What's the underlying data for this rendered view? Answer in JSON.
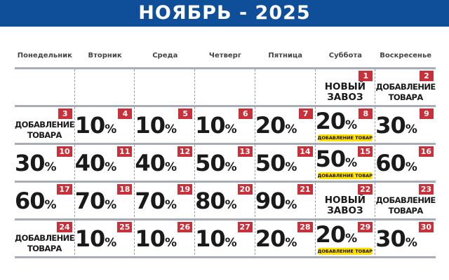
{
  "title": "НОЯБРЬ - 2025",
  "weekdays": [
    "Понедельник",
    "Вторник",
    "Среда",
    "Четверг",
    "Пятница",
    "Суббота",
    "Воскресенье"
  ],
  "percent_sign": "%",
  "colors": {
    "header": "#0f4f99",
    "badge": "#c8303a",
    "tag": "#ffe000"
  },
  "cells": [
    {},
    {},
    {},
    {},
    {},
    {
      "day": "1",
      "text": "НОВЫЙ\nЗАВОЗ",
      "large": true
    },
    {
      "day": "2",
      "text": "ДОБАВЛЕНИЕ\nТОВАРА"
    },
    {
      "day": "3",
      "text": "ДОБАВЛЕНИЕ\nТОВАРА"
    },
    {
      "day": "4",
      "discount": "10"
    },
    {
      "day": "5",
      "discount": "10"
    },
    {
      "day": "6",
      "discount": "10"
    },
    {
      "day": "7",
      "discount": "20"
    },
    {
      "day": "8",
      "discount": "20",
      "tag": "ДОБАВЛЕНИЕ ТОВАРА"
    },
    {
      "day": "9",
      "discount": "30"
    },
    {
      "day": "10",
      "discount": "30"
    },
    {
      "day": "11",
      "discount": "40"
    },
    {
      "day": "12",
      "discount": "40"
    },
    {
      "day": "13",
      "discount": "50"
    },
    {
      "day": "14",
      "discount": "50"
    },
    {
      "day": "15",
      "discount": "50",
      "tag": "ДОБАВЛЕНИЕ ТОВАРА"
    },
    {
      "day": "16",
      "discount": "60"
    },
    {
      "day": "17",
      "discount": "60"
    },
    {
      "day": "18",
      "discount": "70"
    },
    {
      "day": "19",
      "discount": "70"
    },
    {
      "day": "20",
      "discount": "80"
    },
    {
      "day": "21",
      "discount": "90"
    },
    {
      "day": "22",
      "text": "НОВЫЙ\nЗАВОЗ",
      "large": true
    },
    {
      "day": "23",
      "text": "ДОБАВЛЕНИЕ\nТОВАРА"
    },
    {
      "day": "24",
      "text": "ДОБАВЛЕНИЕ\nТОВАРА"
    },
    {
      "day": "25",
      "discount": "10"
    },
    {
      "day": "26",
      "discount": "10"
    },
    {
      "day": "27",
      "discount": "10"
    },
    {
      "day": "28",
      "discount": "20"
    },
    {
      "day": "29",
      "discount": "20",
      "tag": "ДОБАВЛЕНИЕ ТОВАРА"
    },
    {
      "day": "30",
      "discount": "30"
    }
  ]
}
